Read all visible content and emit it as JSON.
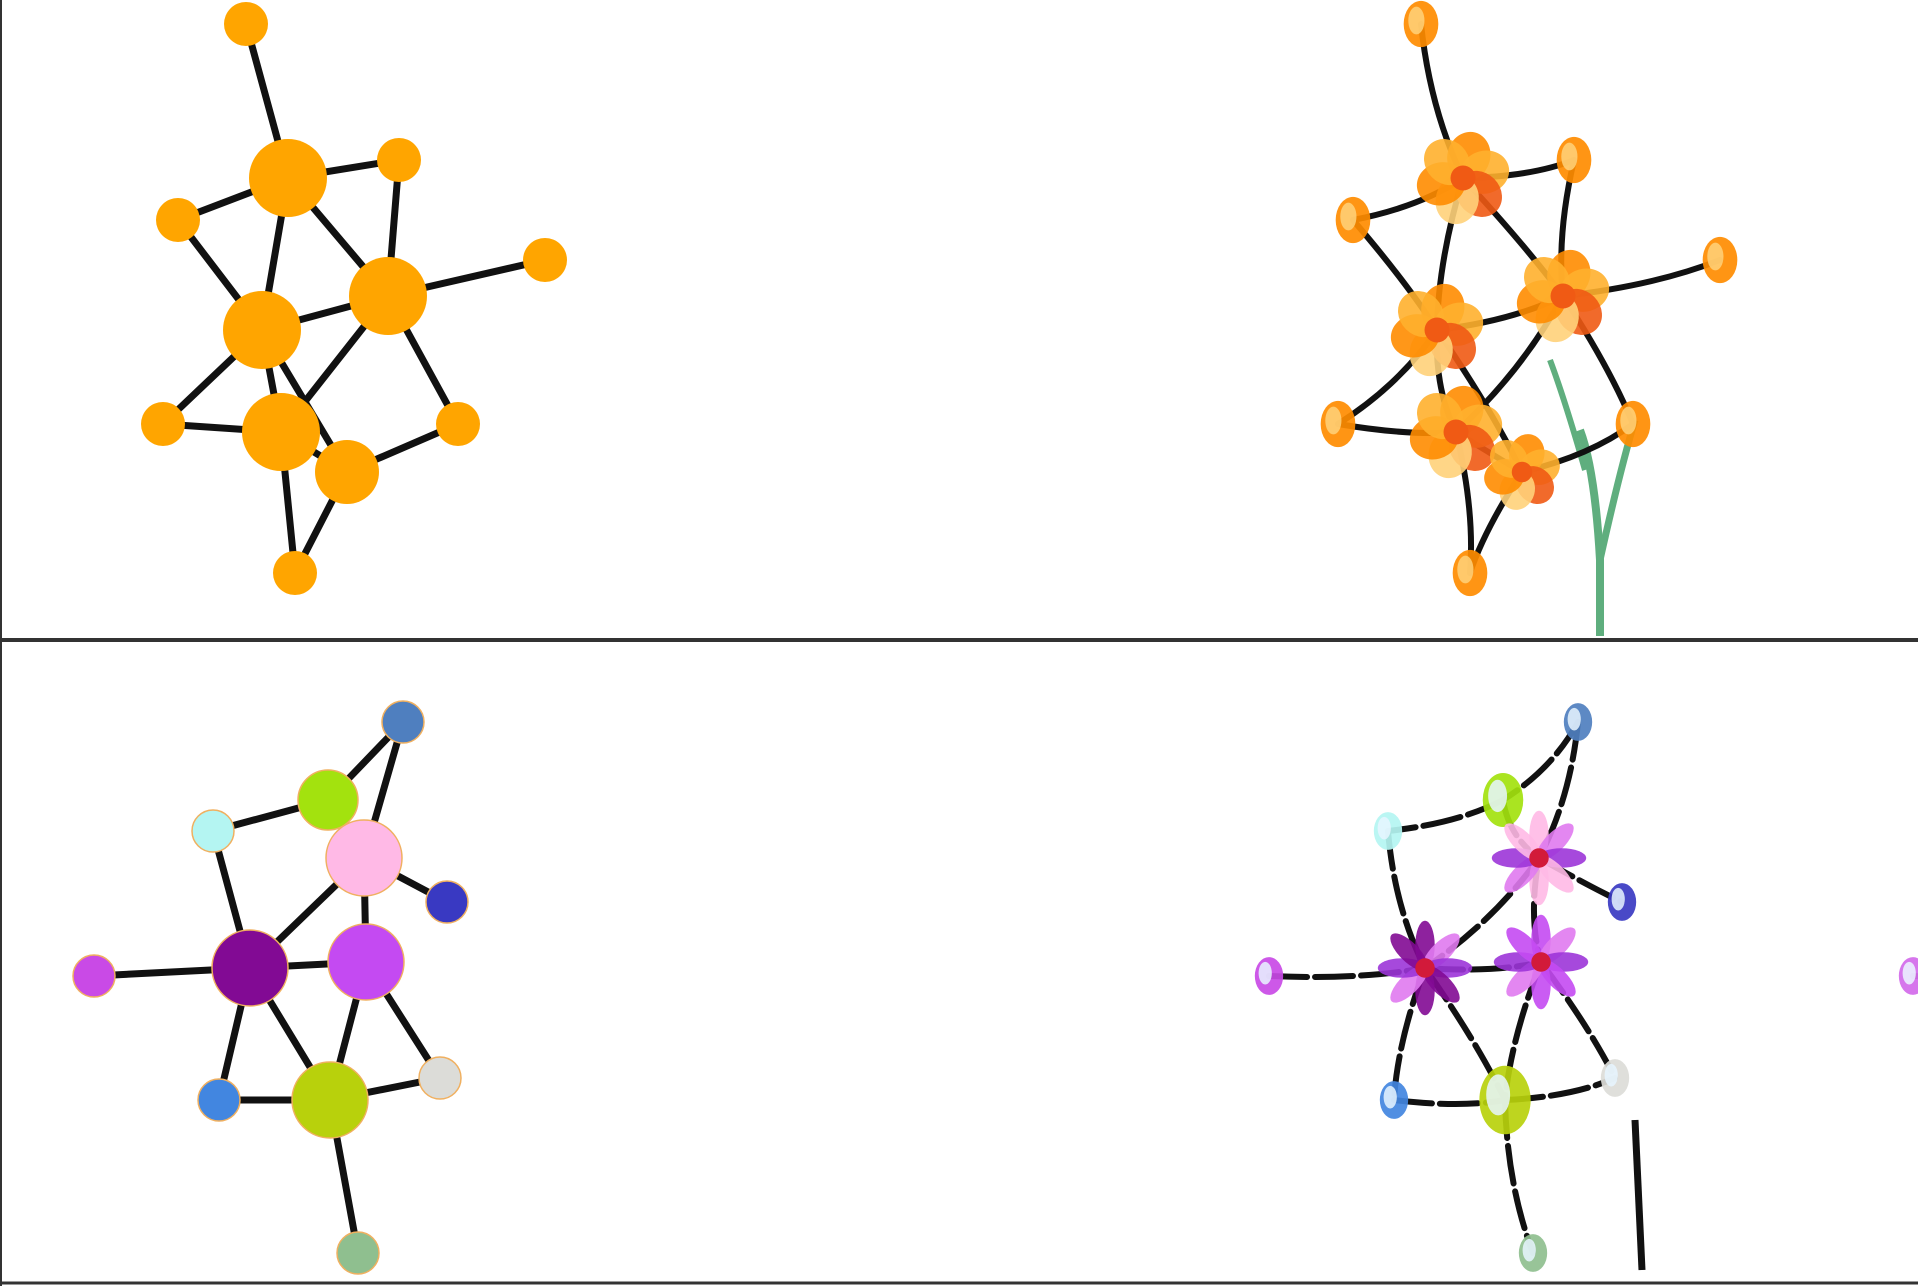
{
  "rows": [
    {
      "id": "row-1",
      "node_color": "#ffa500",
      "edge_color": "#111111",
      "stem_color": "#5fae7e",
      "petal_colors": [
        "#ff8c00",
        "#ffb02e",
        "#f05a14",
        "#ffd27a"
      ],
      "faded_petal_colors": [
        "#f5a23c",
        "#f9be6a",
        "#f08a4a",
        "#fde2b0"
      ],
      "nodes": [
        {
          "id": "a",
          "size": 1,
          "color": "#ffa500"
        },
        {
          "id": "b",
          "size": 1,
          "color": "#ffa500"
        },
        {
          "id": "c",
          "size": 3,
          "color": "#ffa500"
        },
        {
          "id": "d",
          "size": 1,
          "color": "#ffa500"
        },
        {
          "id": "e",
          "size": 3,
          "color": "#ffa500"
        },
        {
          "id": "f",
          "size": 3,
          "color": "#ffa500"
        },
        {
          "id": "g",
          "size": 1,
          "color": "#ffa500"
        },
        {
          "id": "h",
          "size": 1,
          "color": "#ffa500"
        },
        {
          "id": "i",
          "size": 3,
          "color": "#ffa500"
        },
        {
          "id": "j",
          "size": 2,
          "color": "#ffa500"
        },
        {
          "id": "k",
          "size": 1,
          "color": "#ffa500"
        },
        {
          "id": "l",
          "size": 1,
          "color": "#ffa500"
        }
      ],
      "edges": [
        [
          "a",
          "c"
        ],
        [
          "c",
          "d"
        ],
        [
          "c",
          "b"
        ],
        [
          "c",
          "e"
        ],
        [
          "c",
          "f"
        ],
        [
          "b",
          "e"
        ],
        [
          "d",
          "f"
        ],
        [
          "f",
          "g"
        ],
        [
          "e",
          "f"
        ],
        [
          "e",
          "h"
        ],
        [
          "e",
          "i"
        ],
        [
          "e",
          "j"
        ],
        [
          "f",
          "i"
        ],
        [
          "f",
          "k"
        ],
        [
          "h",
          "i"
        ],
        [
          "i",
          "j"
        ],
        [
          "j",
          "k"
        ],
        [
          "i",
          "l"
        ],
        [
          "l",
          "j"
        ]
      ]
    },
    {
      "id": "row-2",
      "edge_color": "#111111",
      "nodes": [
        {
          "id": "a",
          "size": 1,
          "color": "#4f7fbf"
        },
        {
          "id": "b",
          "size": 2,
          "color": "#a3e20e"
        },
        {
          "id": "c",
          "size": 1,
          "color": "#b4f5f2"
        },
        {
          "id": "d",
          "size": 3,
          "color": "#ffb9e6"
        },
        {
          "id": "e",
          "size": 1,
          "color": "#3939c2"
        },
        {
          "id": "f",
          "size": 1,
          "color": "#c94ae6"
        },
        {
          "id": "g",
          "size": 3,
          "color": "#820a94"
        },
        {
          "id": "h",
          "size": 3,
          "color": "#c44af2"
        },
        {
          "id": "i",
          "size": 1,
          "color": "#4286e0"
        },
        {
          "id": "j",
          "size": 3,
          "color": "#b8d10c"
        },
        {
          "id": "k",
          "size": 1,
          "color": "#dcdcd8"
        },
        {
          "id": "l",
          "size": 1,
          "color": "#8fbf8f"
        }
      ],
      "edges": [
        [
          "a",
          "b"
        ],
        [
          "a",
          "d"
        ],
        [
          "b",
          "c"
        ],
        [
          "b",
          "d"
        ],
        [
          "c",
          "g"
        ],
        [
          "d",
          "e"
        ],
        [
          "d",
          "g"
        ],
        [
          "d",
          "h"
        ],
        [
          "f",
          "g"
        ],
        [
          "g",
          "h"
        ],
        [
          "g",
          "i"
        ],
        [
          "g",
          "j"
        ],
        [
          "h",
          "j"
        ],
        [
          "h",
          "k"
        ],
        [
          "i",
          "j"
        ],
        [
          "j",
          "k"
        ],
        [
          "j",
          "l"
        ]
      ]
    }
  ]
}
